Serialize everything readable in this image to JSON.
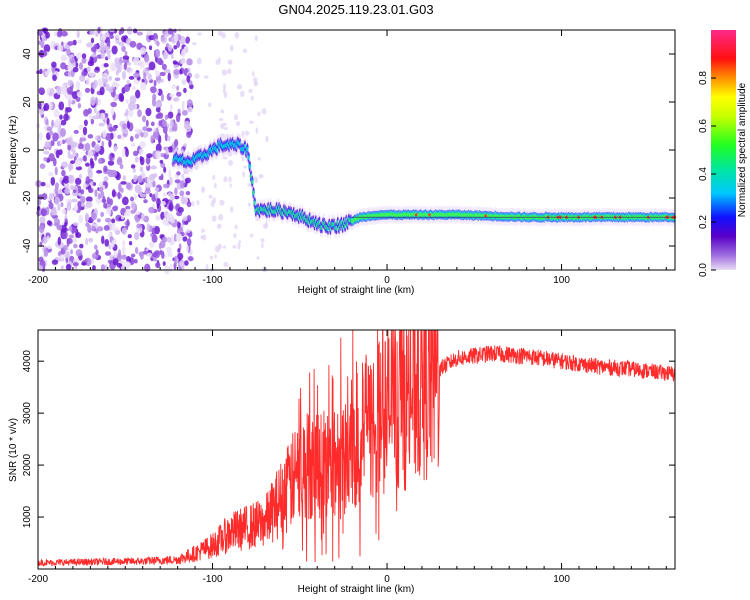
{
  "title": "GN04.2025.119.23.01.G03",
  "colors": {
    "snr_line": "#ff2a2a",
    "frame": "#000000"
  },
  "chart_data": [
    {
      "type": "heatmap",
      "xlabel": "Height of straight line (km)",
      "ylabel": "Frequency (Hz)",
      "xlim": [
        -200,
        165
      ],
      "ylim": [
        -50,
        50
      ],
      "xticks": [
        -200,
        -100,
        0,
        100
      ],
      "yticks": [
        -40,
        -20,
        0,
        20,
        40
      ],
      "colorbar": {
        "label": "Normalized spectral amplitude",
        "range": [
          0,
          1
        ],
        "ticks": [
          "0.0",
          "0.2",
          "0.4",
          "0.6",
          "0.8"
        ],
        "tick_values": [
          0.0,
          0.2,
          0.4,
          0.6,
          0.8
        ],
        "colormap": "rainbow (violet-blue-cyan-green-yellow-red-magenta)"
      },
      "ridge": [
        {
          "x": -122,
          "y": -4
        },
        {
          "x": -112,
          "y": -5
        },
        {
          "x": -105,
          "y": -2
        },
        {
          "x": -95,
          "y": 2
        },
        {
          "x": -85,
          "y": 2
        },
        {
          "x": -80,
          "y": 0
        },
        {
          "x": -75,
          "y": -25
        },
        {
          "x": -65,
          "y": -25
        },
        {
          "x": -55,
          "y": -26
        },
        {
          "x": -45,
          "y": -29
        },
        {
          "x": -35,
          "y": -32
        },
        {
          "x": -25,
          "y": -31
        },
        {
          "x": -15,
          "y": -28
        },
        {
          "x": -5,
          "y": -27
        },
        {
          "x": 10,
          "y": -27
        },
        {
          "x": 40,
          "y": -27
        },
        {
          "x": 80,
          "y": -28
        },
        {
          "x": 120,
          "y": -28
        },
        {
          "x": 165,
          "y": -28
        }
      ],
      "noise_region_x": [
        -200,
        -118
      ]
    },
    {
      "type": "line",
      "xlabel": "Height of straight line (km)",
      "ylabel": "SNR (10 * v/v)",
      "xlim": [
        -200,
        165
      ],
      "ylim": [
        0,
        4600
      ],
      "xticks": [
        -200,
        -100,
        0,
        100
      ],
      "yticks": [
        1000,
        2000,
        3000,
        4000
      ],
      "series": [
        {
          "x": [
            -200,
            -180,
            -160,
            -140,
            -120,
            -110,
            -100,
            -90,
            -80,
            -70,
            -60,
            -50,
            -40,
            -30,
            -20,
            -10,
            0,
            10,
            20,
            30,
            40,
            60,
            80,
            100,
            120,
            140,
            165
          ],
          "values": [
            120,
            130,
            140,
            150,
            180,
            300,
            450,
            700,
            800,
            900,
            1400,
            1900,
            2100,
            2000,
            2400,
            2700,
            3100,
            3300,
            3600,
            3850,
            4050,
            4150,
            4100,
            4000,
            3900,
            3850,
            3750
          ]
        }
      ]
    }
  ]
}
